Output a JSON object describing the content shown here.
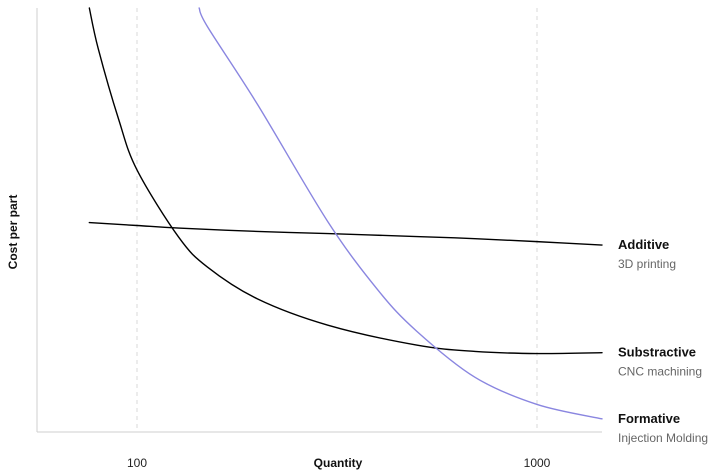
{
  "chart_data": {
    "type": "line",
    "title": "",
    "xlabel": "Quantity",
    "ylabel": "Cost per part",
    "x_scale": "log",
    "x_ticks": [
      100,
      1000
    ],
    "x_tick_labels": [
      "100",
      "1000"
    ],
    "ylim": [
      0,
      100
    ],
    "grid": "vertical dashed at ticks",
    "series": [
      {
        "key": "additive",
        "name": "Additive",
        "subtitle": "3D printing",
        "color": "#000000",
        "x": [
          76,
          100,
          127,
          200,
          300,
          500,
          700,
          1000,
          1500
        ],
        "y": [
          49.4,
          48.7,
          48.1,
          47.3,
          46.8,
          46.1,
          45.6,
          44.9,
          44.1
        ]
      },
      {
        "key": "substractive",
        "name": "Substractive",
        "subtitle": "CNC machining",
        "color": "#000000",
        "x": [
          76,
          80,
          90,
          100,
          127,
          150,
          200,
          300,
          500,
          700,
          1000,
          1500
        ],
        "y": [
          100,
          90.4,
          73.7,
          61.8,
          46.0,
          38.9,
          31.4,
          25.2,
          20.5,
          19.0,
          18.5,
          18.7
        ]
      },
      {
        "key": "formative",
        "name": "Formative",
        "subtitle": "Injection Molding",
        "color": "#8a86e0",
        "x": [
          143,
          150,
          200,
          300,
          400,
          500,
          700,
          1000,
          1500
        ],
        "y": [
          100,
          95.6,
          77.3,
          49.6,
          33.5,
          23.8,
          12.9,
          6.5,
          3.1
        ]
      }
    ]
  }
}
